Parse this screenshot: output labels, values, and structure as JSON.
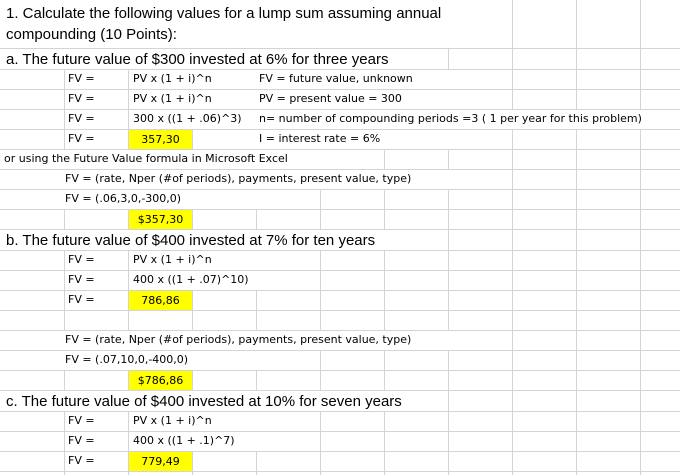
{
  "colors": {
    "grid": "#d4d4d4",
    "highlight": "#ffff00"
  },
  "header": {
    "line1": "1.  Calculate the following values for a lump sum assuming annual",
    "line2": "compounding (10 Points):"
  },
  "section_a": {
    "title": "a.  The future value of $300 invested at 6% for three years",
    "rows": [
      {
        "label": "FV =",
        "formula": "PV x (1 + i)^n",
        "note": "FV = future value, unknown"
      },
      {
        "label": "FV =",
        "formula": "PV x (1 + i)^n",
        "note": "PV = present value = 300"
      },
      {
        "label": "FV =",
        "formula": "300 x ((1 + .06)^3)",
        "note": "n= number of compounding periods =3 ( 1 per year for this problem)"
      },
      {
        "label": "FV =",
        "value": "357,30",
        "note": "I = interest rate = 6%"
      }
    ],
    "excel_intro": "or using the Future Value formula in Microsoft Excel",
    "excel_syntax": "FV = (rate, Nper (#of periods), payments, present value, type)",
    "excel_formula": "FV = (.06,3,0,-300,0)",
    "excel_result": "$357,30"
  },
  "section_b": {
    "title": "b.  The future value of $400 invested at 7% for ten years",
    "rows": [
      {
        "label": "FV =",
        "formula": "PV x (1 + i)^n"
      },
      {
        "label": "FV =",
        "formula": "400 x ((1 + .07)^10)"
      },
      {
        "label": "FV =",
        "value": "786,86"
      }
    ],
    "excel_syntax": "FV = (rate, Nper (#of periods), payments, present value, type)",
    "excel_formula": "FV = (.07,10,0,-400,0)",
    "excel_result": "$786,86"
  },
  "section_c": {
    "title": "c.  The future value of $400 invested at 10% for seven years",
    "rows": [
      {
        "label": "FV =",
        "formula": "PV x (1 + i)^n"
      },
      {
        "label": "FV =",
        "formula": "400 x ((1 + .1)^7)"
      },
      {
        "label": "FV =",
        "value": "779,49"
      }
    ]
  }
}
